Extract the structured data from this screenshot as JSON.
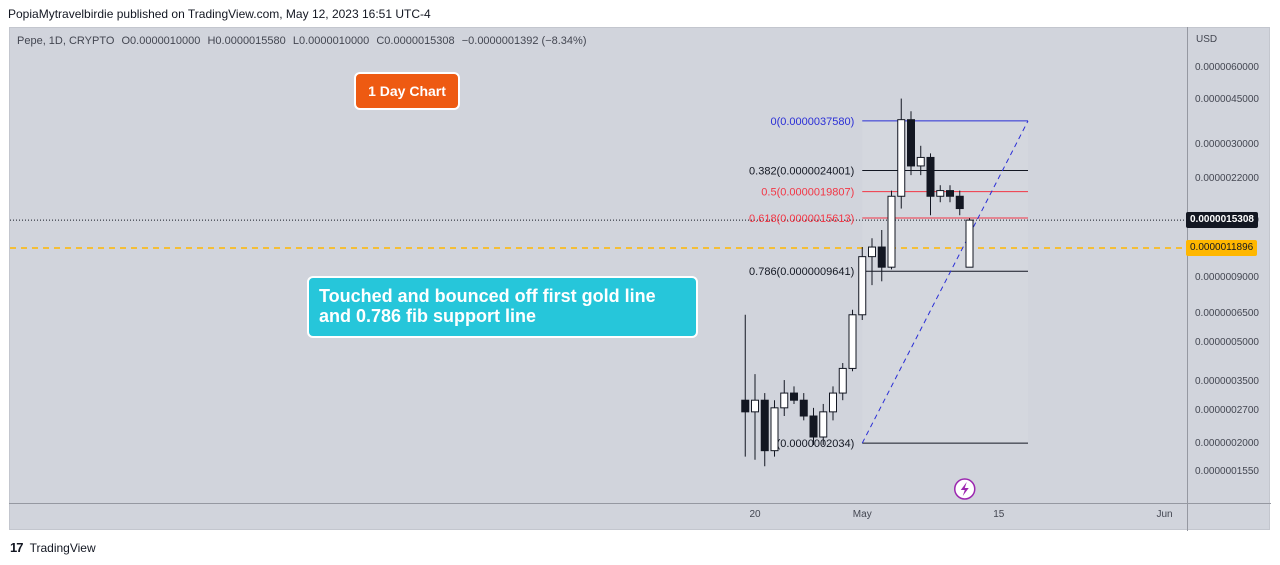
{
  "header": {
    "text": "PopiaMytravelbirdie published on TradingView.com, May 12, 2023 16:51 UTC-4"
  },
  "ohlc": {
    "symbol": "Pepe, 1D, CRYPTO",
    "open": "O0.0000010000",
    "high": "H0.0000015580",
    "low": "L0.0000010000",
    "close": "C0.0000015308",
    "change": "−0.0000001392 (−8.34%)"
  },
  "chart_data": {
    "type": "candlestick",
    "title": "",
    "y_scale": "log",
    "currency": "USD",
    "y_ticks": [
      {
        "label": "0.0000060000",
        "value": 6e-06
      },
      {
        "label": "0.0000045000",
        "value": 4.5e-06
      },
      {
        "label": "0.0000030000",
        "value": 3e-06
      },
      {
        "label": "0.0000022000",
        "value": 2.2e-06
      },
      {
        "label": "0.0000015000",
        "value": 1.5e-06
      },
      {
        "label": "0.0000009000",
        "value": 9e-07
      },
      {
        "label": "0.0000006500",
        "value": 6.5e-07
      },
      {
        "label": "0.0000005000",
        "value": 5e-07
      },
      {
        "label": "0.0000003500",
        "value": 3.5e-07
      },
      {
        "label": "0.0000002700",
        "value": 2.7e-07
      },
      {
        "label": "0.0000002000",
        "value": 2e-07
      },
      {
        "label": "0.0000001550",
        "value": 1.55e-07
      }
    ],
    "x_ticks": [
      {
        "label": "20",
        "day": 20
      },
      {
        "label": "May",
        "day": 31
      },
      {
        "label": "15",
        "day": 45
      },
      {
        "label": "Jun",
        "day": 62
      }
    ],
    "x_range_days": [
      -2,
      70
    ],
    "candles": [
      {
        "day": 19,
        "o": 3e-07,
        "h": 6.5e-07,
        "l": 1.8e-07,
        "c": 2.7e-07
      },
      {
        "day": 20,
        "o": 2.7e-07,
        "h": 3.8e-07,
        "l": 1.75e-07,
        "c": 3e-07
      },
      {
        "day": 21,
        "o": 3e-07,
        "h": 3.2e-07,
        "l": 1.65e-07,
        "c": 1.9e-07
      },
      {
        "day": 22,
        "o": 1.9e-07,
        "h": 3e-07,
        "l": 1.8e-07,
        "c": 2.8e-07
      },
      {
        "day": 23,
        "o": 2.8e-07,
        "h": 3.6e-07,
        "l": 2.6e-07,
        "c": 3.2e-07
      },
      {
        "day": 24,
        "o": 3.2e-07,
        "h": 3.4e-07,
        "l": 2.9e-07,
        "c": 3e-07
      },
      {
        "day": 25,
        "o": 3e-07,
        "h": 3.2e-07,
        "l": 2.5e-07,
        "c": 2.6e-07
      },
      {
        "day": 26,
        "o": 2.6e-07,
        "h": 2.8e-07,
        "l": 2e-07,
        "c": 2.15e-07
      },
      {
        "day": 27,
        "o": 2.15e-07,
        "h": 2.9e-07,
        "l": 2e-07,
        "c": 2.7e-07
      },
      {
        "day": 28,
        "o": 2.7e-07,
        "h": 3.4e-07,
        "l": 2.5e-07,
        "c": 3.2e-07
      },
      {
        "day": 29,
        "o": 3.2e-07,
        "h": 4.2e-07,
        "l": 3e-07,
        "c": 4e-07
      },
      {
        "day": 30,
        "o": 4e-07,
        "h": 6.8e-07,
        "l": 3.9e-07,
        "c": 6.5e-07
      },
      {
        "day": 31,
        "o": 6.5e-07,
        "h": 1.2e-06,
        "l": 6.2e-07,
        "c": 1.1e-06
      },
      {
        "day": 32,
        "o": 1.1e-06,
        "h": 1.3e-06,
        "l": 8.5e-07,
        "c": 1.2e-06
      },
      {
        "day": 33,
        "o": 1.2e-06,
        "h": 1.4e-06,
        "l": 8.8e-07,
        "c": 1e-06
      },
      {
        "day": 34,
        "o": 1e-06,
        "h": 2e-06,
        "l": 9.8e-07,
        "c": 1.9e-06
      },
      {
        "day": 35,
        "o": 1.9e-06,
        "h": 4.6e-06,
        "l": 1.7e-06,
        "c": 3.8e-06
      },
      {
        "day": 36,
        "o": 3.8e-06,
        "h": 4.1e-06,
        "l": 2.3e-06,
        "c": 2.5e-06
      },
      {
        "day": 37,
        "o": 2.5e-06,
        "h": 3e-06,
        "l": 2.3e-06,
        "c": 2.7e-06
      },
      {
        "day": 38,
        "o": 2.7e-06,
        "h": 2.8e-06,
        "l": 1.6e-06,
        "c": 1.9e-06
      },
      {
        "day": 39,
        "o": 1.9e-06,
        "h": 2.1e-06,
        "l": 1.8e-06,
        "c": 2e-06
      },
      {
        "day": 40,
        "o": 2e-06,
        "h": 2.1e-06,
        "l": 1.8e-06,
        "c": 1.9e-06
      },
      {
        "day": 41,
        "o": 1.9e-06,
        "h": 2e-06,
        "l": 1.6e-06,
        "c": 1.7e-06
      },
      {
        "day": 42,
        "o": 1e-06,
        "h": 1.558e-06,
        "l": 1e-06,
        "c": 1.5308e-06
      }
    ],
    "fib_levels": [
      {
        "ratio": 0,
        "price": 3.758e-06,
        "label": "0(0.0000037580)",
        "color": "#2a2ed6"
      },
      {
        "ratio": 0.382,
        "price": 2.4001e-06,
        "label": "0.382(0.0000024001)",
        "color": "#131722"
      },
      {
        "ratio": 0.5,
        "price": 1.9807e-06,
        "label": "0.5(0.0000019807)",
        "color": "#f23645"
      },
      {
        "ratio": 0.618,
        "price": 1.5613e-06,
        "label": "0.618(0.0000015613)",
        "color": "#f23645"
      },
      {
        "ratio": 0.786,
        "price": 9.641e-07,
        "label": "0.786(0.0000009641)",
        "color": "#131722"
      },
      {
        "ratio": 1,
        "price": 2.034e-07,
        "label": "1(0.0000002034)",
        "color": "#131722"
      }
    ],
    "fib_day_range": [
      31,
      48
    ],
    "trend_line": {
      "from": {
        "day": 31,
        "price": 2.034e-07
      },
      "to": {
        "day": 48,
        "price": 3.758e-06
      },
      "color": "#2a2ed6"
    },
    "horizontal_lines": [
      {
        "name": "last-price",
        "price": 1.5308e-06,
        "label": "0.0000015308",
        "color": "#131722",
        "style": "dotted"
      },
      {
        "name": "gold-line",
        "price": 1.1896e-06,
        "label": "0.0000011896",
        "color": "#ffb700",
        "style": "dashed"
      }
    ],
    "lightning_marker_day": 41,
    "annotations": [
      {
        "name": "timeframe-note",
        "text": "1 Day Chart",
        "color": "#ee5a12"
      },
      {
        "name": "bounce-note",
        "lines": [
          "Touched and bounced off first gold line",
          "and 0.786 fib support line"
        ],
        "color": "#26c6da"
      }
    ]
  },
  "footer": {
    "logo": "17",
    "brand": "TradingView"
  }
}
